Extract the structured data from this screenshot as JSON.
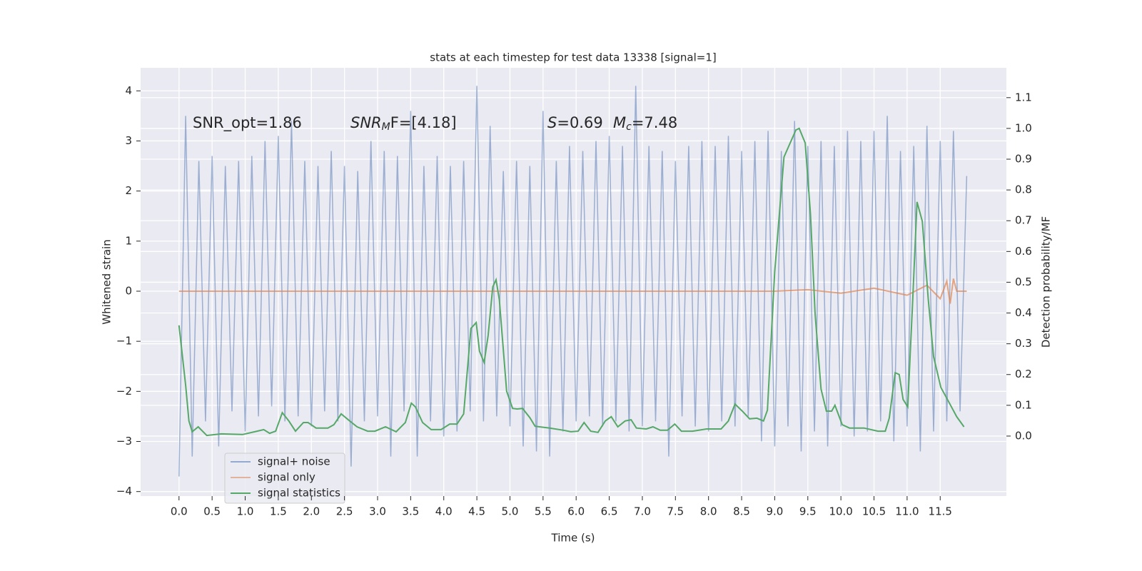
{
  "chart_data": {
    "type": "line",
    "title": "stats at each timestep for test data 13338 [signal=1]",
    "xlabel": "Time (s)",
    "ylabel": "Whitened strain",
    "y2label": "Detection probability/MF",
    "xlim": [
      -0.58,
      12.5
    ],
    "ylim": [
      -4.09,
      4.46
    ],
    "y2lim": [
      -0.195,
      1.197
    ],
    "xticks": [
      {
        "value": 0,
        "label": "0.0"
      },
      0.5,
      {
        "value": 1,
        "label": "1.0"
      },
      1.5,
      {
        "value": 2,
        "label": "2.0"
      },
      2.5,
      {
        "value": 3,
        "label": "3.0"
      },
      3.5,
      {
        "value": 4,
        "label": "4.0"
      },
      4.5,
      {
        "value": 5,
        "label": "5.0"
      },
      5.5,
      {
        "value": 6,
        "label": "6.0"
      },
      6.5,
      {
        "value": 7,
        "label": "7.0"
      },
      7.5,
      {
        "value": 8,
        "label": "8.0"
      },
      8.5,
      {
        "value": 9,
        "label": "9.0"
      },
      9.5,
      {
        "value": 10,
        "label": "10.0"
      },
      10.5,
      {
        "value": 11,
        "label": "11.0"
      },
      11.5
    ],
    "yticks": [
      {
        "value": -4,
        "label": "−4"
      },
      {
        "value": -3,
        "label": "−3"
      },
      {
        "value": -2,
        "label": "−2"
      },
      {
        "value": -1,
        "label": "−1"
      },
      0,
      1,
      2,
      3,
      4
    ],
    "y2ticks": [
      {
        "value": 0,
        "label": "0.0"
      },
      0.1,
      0.2,
      0.3,
      0.4,
      0.5,
      0.6,
      0.7,
      0.8,
      0.9,
      {
        "value": 1,
        "label": "1.0"
      },
      1.1
    ],
    "grid": true,
    "legend": "lower left",
    "annotations": [
      {
        "text": "SNR_opt=1.86"
      },
      {
        "base": "SNR",
        "sub": "M",
        "rest": "F=[4.18]"
      },
      {
        "base": "S",
        "rest": "=0.69"
      },
      {
        "base": "M",
        "sub": "c",
        "rest": "=7.48"
      }
    ],
    "series": [
      {
        "name": "signal+ noise",
        "color": "#4c72b0",
        "axis": "y",
        "x": [
          0,
          0.1,
          0.2,
          0.3,
          0.4,
          0.5,
          0.6,
          0.7,
          0.8,
          0.9,
          1,
          1.1,
          1.2,
          1.3,
          1.4,
          1.5,
          1.6,
          1.7,
          1.8,
          1.9,
          2,
          2.1,
          2.2,
          2.3,
          2.4,
          2.5,
          2.6,
          2.7,
          2.8,
          2.9,
          3,
          3.1,
          3.2,
          3.3,
          3.4,
          3.5,
          3.6,
          3.7,
          3.8,
          3.9,
          4,
          4.1,
          4.2,
          4.3,
          4.4,
          4.5,
          4.6,
          4.7,
          4.8,
          4.9,
          5,
          5.1,
          5.2,
          5.3,
          5.4,
          5.5,
          5.6,
          5.7,
          5.8,
          5.9,
          6,
          6.1,
          6.2,
          6.3,
          6.4,
          6.5,
          6.6,
          6.7,
          6.8,
          6.9,
          7,
          7.1,
          7.2,
          7.3,
          7.4,
          7.5,
          7.6,
          7.7,
          7.8,
          7.9,
          8,
          8.1,
          8.2,
          8.3,
          8.4,
          8.5,
          8.6,
          8.7,
          8.8,
          8.9,
          9,
          9.1,
          9.2,
          9.3,
          9.4,
          9.5,
          9.6,
          9.7,
          9.8,
          9.9,
          10,
          10.1,
          10.2,
          10.3,
          10.4,
          10.5,
          10.6,
          10.7,
          10.8,
          10.9,
          11,
          11.1,
          11.2,
          11.3,
          11.4,
          11.5,
          11.6,
          11.7,
          11.8,
          11.9
        ],
        "values": [
          -3.7,
          3.5,
          -3.3,
          2.6,
          -2.6,
          2.7,
          -3.1,
          2.5,
          -2.4,
          2.6,
          -2.8,
          2.7,
          -2.5,
          3.0,
          -2.3,
          3.1,
          -2.6,
          3.4,
          -2.5,
          2.6,
          -2.7,
          2.5,
          -2.4,
          2.8,
          -2.6,
          2.5,
          -3.5,
          2.4,
          -2.6,
          3.0,
          -2.5,
          2.8,
          -3.3,
          2.7,
          -2.4,
          3.6,
          -3.3,
          2.5,
          -2.6,
          2.7,
          -2.9,
          2.5,
          -2.8,
          2.6,
          -2.4,
          4.1,
          -2.6,
          3.3,
          -2.5,
          2.4,
          -2.7,
          2.6,
          -3.1,
          2.5,
          -3.2,
          3.6,
          -3.3,
          2.6,
          -2.8,
          2.9,
          -2.6,
          2.8,
          -2.5,
          3.0,
          -2.7,
          3.1,
          -2.6,
          2.9,
          -2.8,
          4.1,
          -2.7,
          2.9,
          -2.6,
          2.8,
          -3.3,
          2.6,
          -2.5,
          2.9,
          -2.7,
          3.0,
          -2.8,
          2.9,
          -2.6,
          3.1,
          -2.7,
          2.8,
          -2.5,
          3.0,
          -3.0,
          3.2,
          -3.1,
          2.8,
          -2.7,
          3.4,
          -3.2,
          2.9,
          -2.8,
          3.0,
          -3.1,
          2.9,
          -2.7,
          3.2,
          -2.9,
          3.0,
          -2.8,
          3.2,
          -2.6,
          3.5,
          -3.0,
          2.8,
          -2.7,
          2.9,
          -3.2,
          3.3,
          -2.8,
          3.0,
          -2.6,
          3.2,
          -2.4,
          2.3
        ]
      },
      {
        "name": "signal only",
        "color": "#dd8452",
        "axis": "y",
        "x": [
          0,
          9.0,
          9.5,
          10.0,
          10.5,
          11.0,
          11.3,
          11.5,
          11.6,
          11.65,
          11.7,
          11.75,
          11.9
        ],
        "values": [
          0,
          0,
          0.03,
          -0.04,
          0.06,
          -0.08,
          0.12,
          -0.15,
          0.2,
          -0.25,
          0.25,
          0,
          0
        ]
      },
      {
        "name": "signal statistics",
        "color": "#55a868",
        "axis": "y2",
        "x": [
          0,
          0.1,
          0.15,
          0.2,
          0.29,
          0.42,
          0.64,
          0.96,
          1.18,
          1.28,
          1.37,
          1.46,
          1.56,
          1.66,
          1.76,
          1.88,
          1.95,
          2.07,
          2.25,
          2.34,
          2.45,
          2.58,
          2.69,
          2.85,
          2.96,
          3.12,
          3.28,
          3.42,
          3.51,
          3.57,
          3.68,
          3.81,
          3.96,
          4.09,
          4.2,
          4.3,
          4.41,
          4.49,
          4.54,
          4.61,
          4.67,
          4.74,
          4.79,
          4.84,
          4.95,
          5.04,
          5.11,
          5.19,
          5.3,
          5.38,
          5.6,
          5.81,
          5.92,
          6.03,
          6.12,
          6.22,
          6.33,
          6.44,
          6.53,
          6.63,
          6.74,
          6.83,
          6.91,
          7.06,
          7.16,
          7.27,
          7.38,
          7.49,
          7.59,
          7.76,
          7.97,
          8.19,
          8.3,
          8.4,
          8.51,
          8.62,
          8.73,
          8.83,
          8.89,
          9.0,
          9.14,
          9.32,
          9.37,
          9.46,
          9.54,
          9.61,
          9.7,
          9.78,
          9.86,
          9.91,
          10.02,
          10.13,
          10.35,
          10.56,
          10.67,
          10.73,
          10.82,
          10.88,
          10.94,
          11.01,
          11.08,
          11.15,
          11.23,
          11.32,
          11.4,
          11.51,
          11.64,
          11.75,
          11.86
        ],
        "values": [
          0.36,
          0.165,
          0.049,
          0.014,
          0.03,
          0.002,
          0.007,
          0.005,
          0.016,
          0.021,
          0.009,
          0.016,
          0.076,
          0.049,
          0.016,
          0.044,
          0.044,
          0.026,
          0.026,
          0.037,
          0.072,
          0.049,
          0.03,
          0.016,
          0.016,
          0.03,
          0.014,
          0.044,
          0.107,
          0.095,
          0.044,
          0.021,
          0.021,
          0.039,
          0.039,
          0.072,
          0.35,
          0.369,
          0.276,
          0.239,
          0.327,
          0.485,
          0.508,
          0.443,
          0.146,
          0.09,
          0.088,
          0.09,
          0.06,
          0.032,
          0.026,
          0.019,
          0.014,
          0.016,
          0.044,
          0.016,
          0.012,
          0.049,
          0.063,
          0.03,
          0.049,
          0.053,
          0.026,
          0.023,
          0.03,
          0.019,
          0.019,
          0.039,
          0.016,
          0.016,
          0.023,
          0.023,
          0.049,
          0.104,
          0.081,
          0.056,
          0.058,
          0.049,
          0.084,
          0.534,
          0.907,
          0.995,
          1.0,
          0.953,
          0.722,
          0.397,
          0.153,
          0.081,
          0.081,
          0.1,
          0.037,
          0.026,
          0.026,
          0.016,
          0.016,
          0.058,
          0.206,
          0.2,
          0.119,
          0.095,
          0.419,
          0.761,
          0.698,
          0.443,
          0.258,
          0.158,
          0.107,
          0.063,
          0.03
        ]
      }
    ]
  }
}
